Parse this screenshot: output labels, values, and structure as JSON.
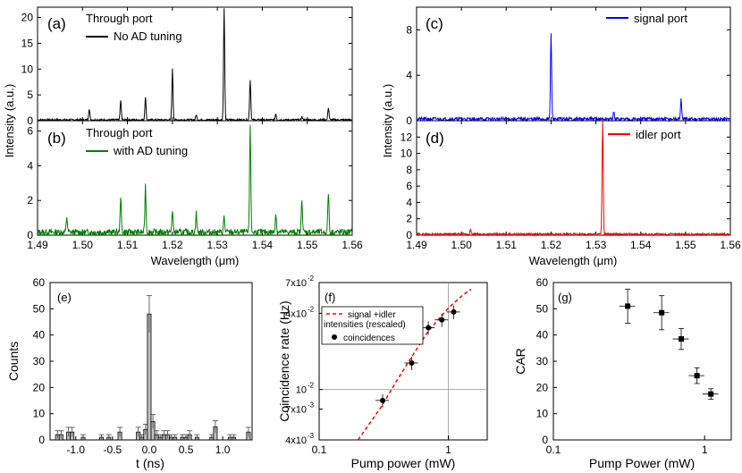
{
  "figure": {
    "panels_top": {
      "a": {
        "letter": "(a)",
        "title": "Through port",
        "legend": "No AD tuning",
        "color": "#000000",
        "ylabel": "Intensity (a.u.)",
        "ylim": [
          0,
          22
        ],
        "yticks": [
          "0",
          "5",
          "10",
          "15",
          "20"
        ],
        "ytick_values": [
          0,
          5,
          10,
          15,
          20
        ],
        "xlim": [
          1.49,
          1.56
        ]
      },
      "b": {
        "letter": "(b)",
        "title": "Through port",
        "legend": "with AD tuning",
        "color": "#008000",
        "ylim": [
          0,
          6.6
        ],
        "yticks": [
          "0",
          "2",
          "4",
          "6"
        ],
        "ytick_values": [
          0,
          2,
          4,
          6
        ],
        "xlim": [
          1.49,
          1.56
        ],
        "xlabel": "Wavelength (μm)",
        "xticks": [
          "1.49",
          "1.50",
          "1.51",
          "1.52",
          "1.53",
          "1.54",
          "1.55",
          "1.56"
        ]
      },
      "c": {
        "letter": "(c)",
        "legend": "signal port",
        "color": "#0000ff",
        "ylabel": "Intensity (a.u.)",
        "ylim": [
          0,
          10
        ],
        "yticks": [
          "0",
          "4",
          "8"
        ],
        "ytick_values": [
          0,
          4,
          8
        ],
        "xlim": [
          1.49,
          1.56
        ]
      },
      "d": {
        "letter": "(d)",
        "legend": "idler port",
        "color": "#ff0000",
        "ylim": [
          0,
          14
        ],
        "yticks": [
          "0",
          "2",
          "4",
          "6",
          "8",
          "10",
          "12"
        ],
        "ytick_values": [
          0,
          2,
          4,
          6,
          8,
          10,
          12
        ],
        "xlim": [
          1.49,
          1.56
        ],
        "xlabel": "Wavelength (μm)",
        "xticks": [
          "1.49",
          "1.50",
          "1.51",
          "1.52",
          "1.53",
          "1.54",
          "1.55",
          "1.56"
        ]
      }
    },
    "panel_e": {
      "letter": "(e)",
      "xlabel": "t (ns)",
      "ylabel": "Counts",
      "ylim": [
        0,
        60
      ],
      "yticks": [
        "0",
        "10",
        "20",
        "30",
        "40",
        "50",
        "60"
      ],
      "ytick_values": [
        0,
        10,
        20,
        30,
        40,
        50,
        60
      ],
      "xlim": [
        -1.35,
        1.4
      ],
      "xticks": [
        "-1.0",
        "-0.5",
        "0.0",
        "0.5",
        "1.0"
      ],
      "xtick_values": [
        -1.0,
        -0.5,
        0.0,
        0.5,
        1.0
      ]
    },
    "panel_f": {
      "letter": "(f)",
      "xlabel": "Pump power (mW)",
      "ylabel": "Coincidence rate (Hz)",
      "xticks": [
        "0.1",
        "1"
      ],
      "xtick_values": [
        0.1,
        1
      ],
      "yticks": [
        "4x10",
        "10",
        "4x10",
        "7x10"
      ],
      "ytick_exponents": [
        "-3",
        "-2",
        "-2",
        "-2"
      ],
      "yticks_extra": [
        {
          "label": "7x10",
          "exp": "-3"
        }
      ],
      "legend_line": "signal +idler",
      "legend_line2": "intensities  (rescaled)",
      "legend_points": "coincidences"
    },
    "panel_g": {
      "letter": "(g)",
      "xlabel": "Pump Power (mW)",
      "ylabel": "CAR",
      "xticks": [
        "0.1",
        "1"
      ],
      "xtick_values": [
        0.1,
        1
      ],
      "yticks": [
        "0",
        "10",
        "20",
        "30",
        "40",
        "50",
        "60"
      ],
      "ytick_values": [
        0,
        10,
        20,
        30,
        40,
        50,
        60
      ]
    }
  },
  "chart_data": [
    {
      "type": "line",
      "panel": "a",
      "title": "Through port",
      "ylabel": "Intensity (a.u.)",
      "xlim": [
        1.49,
        1.56
      ],
      "ylim": [
        0,
        22
      ],
      "series": [
        {
          "name": "No AD tuning",
          "peaks_x": [
            1.5015,
            1.5085,
            1.514,
            1.52,
            1.5253,
            1.5315,
            1.5373,
            1.543,
            1.5488,
            1.5547
          ],
          "peaks_y": [
            2.2,
            3.8,
            4.5,
            9.8,
            1.0,
            21.5,
            7.7,
            1.2,
            0.6,
            2.4
          ]
        }
      ]
    },
    {
      "type": "line",
      "panel": "b",
      "title": "Through port",
      "xlabel": "Wavelength (μm)",
      "xlim": [
        1.49,
        1.56
      ],
      "ylim": [
        0,
        6.6
      ],
      "series": [
        {
          "name": "with AD tuning",
          "peaks_x": [
            1.4965,
            1.5085,
            1.514,
            1.52,
            1.5253,
            1.5315,
            1.5373,
            1.543,
            1.5488,
            1.5547
          ],
          "peaks_y": [
            0.9,
            2.1,
            2.7,
            1.3,
            1.1,
            0.9,
            6.2,
            1.1,
            2.0,
            2.3
          ]
        }
      ]
    },
    {
      "type": "line",
      "panel": "c",
      "xlim": [
        1.49,
        1.56
      ],
      "ylim": [
        0,
        10
      ],
      "series": [
        {
          "name": "signal port",
          "peaks_x": [
            1.52,
            1.534,
            1.549
          ],
          "peaks_y": [
            7.5,
            0.6,
            1.7
          ]
        }
      ]
    },
    {
      "type": "line",
      "panel": "d",
      "xlabel": "Wavelength (μm)",
      "xlim": [
        1.49,
        1.56
      ],
      "ylim": [
        0,
        14
      ],
      "series": [
        {
          "name": "idler port",
          "peaks_x": [
            1.5315,
            1.502
          ],
          "peaks_y": [
            14.0,
            0.5
          ]
        }
      ]
    },
    {
      "type": "bar",
      "panel": "e",
      "xlabel": "t (ns)",
      "ylabel": "Counts",
      "ylim": [
        0,
        60
      ],
      "x": [
        -1.25,
        -1.2,
        -1.1,
        -1.05,
        -0.9,
        -0.65,
        -0.55,
        -0.4,
        -0.15,
        -0.1,
        -0.05,
        0.0,
        0.05,
        0.1,
        0.15,
        0.2,
        0.25,
        0.3,
        0.35,
        0.45,
        0.5,
        0.55,
        0.65,
        0.85,
        0.9,
        1.1,
        1.15,
        1.35
      ],
      "values": [
        2,
        2,
        3,
        3,
        1,
        1,
        1,
        3,
        3,
        1,
        4,
        48,
        7,
        2,
        1,
        2,
        2,
        1,
        1,
        1,
        1,
        2,
        1,
        1,
        5,
        1,
        1,
        3
      ],
      "errors": [
        1.5,
        1.5,
        1.8,
        1.8,
        1,
        1,
        1,
        1.8,
        1.8,
        1,
        2,
        7,
        2.7,
        1.5,
        1,
        1.5,
        1.5,
        1,
        1,
        1,
        1,
        1.5,
        1,
        1,
        2.3,
        1,
        1,
        1.8
      ]
    },
    {
      "type": "scatter",
      "panel": "f",
      "xlabel": "Pump power (mW)",
      "ylabel": "Coincidence rate (Hz)",
      "xscale": "log",
      "yscale": "log",
      "xlim": [
        0.1,
        2
      ],
      "ylim": [
        0.004,
        0.07
      ],
      "series": [
        {
          "name": "coincidences",
          "x": [
            0.31,
            0.52,
            0.7,
            0.89,
            1.1
          ],
          "y": [
            0.0082,
            0.0162,
            0.0308,
            0.0355,
            0.041
          ]
        },
        {
          "name": "signal +idler intensities  (rescaled)",
          "x": [
            0.2,
            0.3,
            0.4,
            0.5,
            0.7,
            1.0,
            1.3,
            1.5
          ],
          "y": [
            0.004,
            0.0072,
            0.0118,
            0.017,
            0.029,
            0.044,
            0.056,
            0.062
          ]
        }
      ]
    },
    {
      "type": "scatter",
      "panel": "g",
      "xlabel": "Pump Power (mW)",
      "ylabel": "CAR",
      "xscale": "log",
      "xlim": [
        0.1,
        1.5
      ],
      "ylim": [
        0,
        60
      ],
      "series": [
        {
          "name": "CAR",
          "x": [
            0.31,
            0.52,
            0.7,
            0.89,
            1.1
          ],
          "y": [
            51,
            48.5,
            38.5,
            24.5,
            17.5
          ],
          "yerr": [
            6.5,
            6.5,
            4,
            3,
            2
          ]
        }
      ]
    }
  ]
}
